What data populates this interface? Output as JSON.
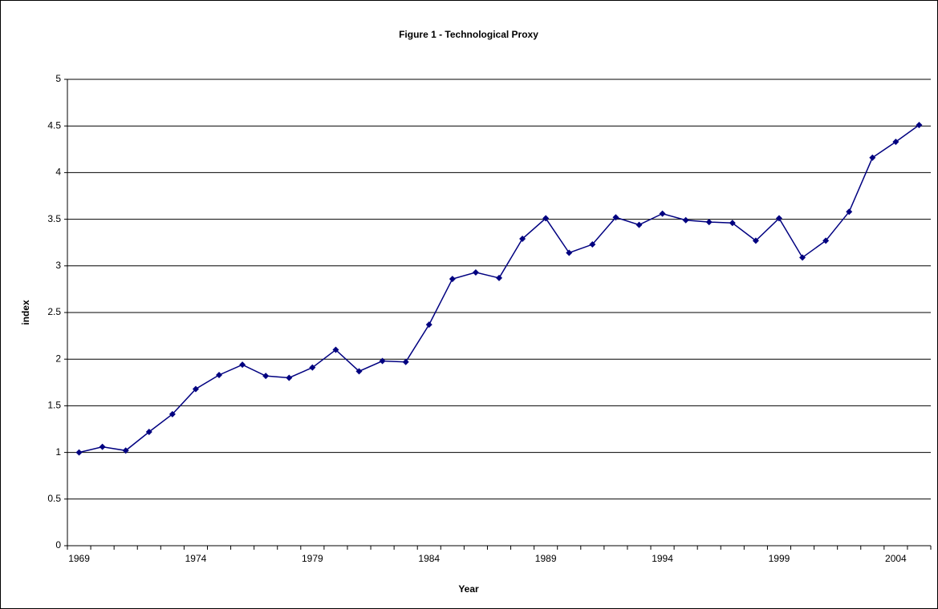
{
  "chart_data": {
    "type": "line",
    "title": "Figure 1 - Technological Proxy",
    "x_label": "Year",
    "y_label": "index",
    "categories": [
      "1969",
      null,
      null,
      null,
      null,
      "1974",
      null,
      null,
      null,
      null,
      "1979",
      null,
      null,
      null,
      null,
      "1984",
      null,
      null,
      null,
      null,
      "1989",
      null,
      null,
      null,
      null,
      "1994",
      null,
      null,
      null,
      null,
      "1999",
      null,
      null,
      null,
      null,
      "2004",
      null
    ],
    "series": [
      {
        "name": "index",
        "color": "#000080",
        "values": [
          1.0,
          1.06,
          1.02,
          1.22,
          1.41,
          1.68,
          1.83,
          1.94,
          1.82,
          1.8,
          1.91,
          2.1,
          1.87,
          1.98,
          1.97,
          2.37,
          2.86,
          2.93,
          2.87,
          3.29,
          3.51,
          3.14,
          3.23,
          3.52,
          3.44,
          3.56,
          3.49,
          3.47,
          3.46,
          3.27,
          3.51,
          3.09,
          3.27,
          3.58,
          4.16,
          4.33,
          4.51
        ]
      }
    ],
    "ylim": [
      0,
      5
    ],
    "yticks": [
      0,
      0.5,
      1,
      1.5,
      2,
      2.5,
      3,
      3.5,
      4,
      4.5,
      5
    ],
    "grid": true
  }
}
